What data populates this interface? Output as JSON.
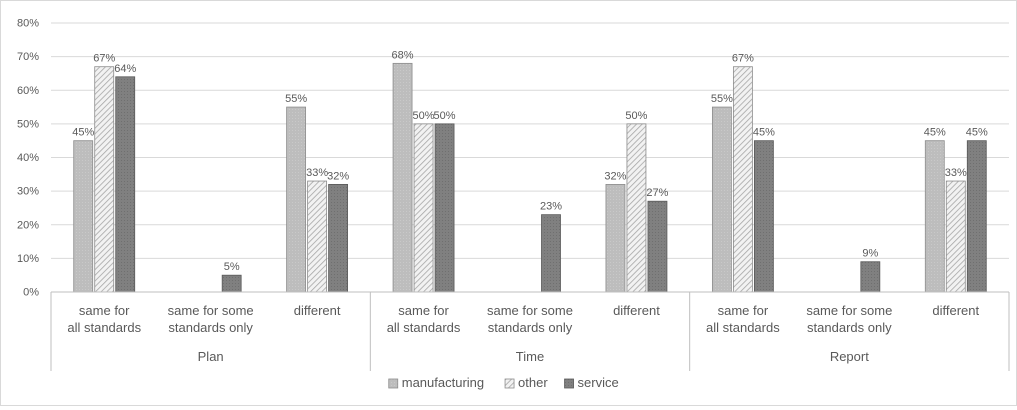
{
  "chart_data": {
    "type": "bar",
    "groups": [
      {
        "name": "Plan",
        "categories": [
          "same for all standards",
          "same for some standards only",
          "different"
        ]
      },
      {
        "name": "Time",
        "categories": [
          "same for all standards",
          "same for some standards only",
          "different"
        ]
      },
      {
        "name": "Report",
        "categories": [
          "same for all standards",
          "same for some standards only",
          "different"
        ]
      }
    ],
    "series": [
      {
        "name": "manufacturing",
        "color": "#bfbfbf",
        "pattern": "solid-light",
        "values": [
          45,
          0,
          55,
          68,
          0,
          32,
          55,
          0,
          45
        ],
        "labels": [
          "45%",
          "",
          "55%",
          "68%",
          "",
          "32%",
          "55%",
          "",
          "45%"
        ]
      },
      {
        "name": "other",
        "color": "#e6e6e6",
        "pattern": "diagonal-hatch",
        "values": [
          67,
          0,
          33,
          50,
          0,
          50,
          67,
          0,
          33
        ],
        "labels": [
          "67%",
          "",
          "33%",
          "50%",
          "",
          "50%",
          "67%",
          "",
          "33%"
        ]
      },
      {
        "name": "service",
        "color": "#7f7f7f",
        "pattern": "solid-dark",
        "values": [
          64,
          5,
          32,
          50,
          23,
          27,
          45,
          9,
          45
        ],
        "labels": [
          "64%",
          "5%",
          "32%",
          "50%",
          "23%",
          "27%",
          "45%",
          "9%",
          "45%"
        ]
      }
    ],
    "y_ticks": [
      "0%",
      "10%",
      "20%",
      "30%",
      "40%",
      "50%",
      "60%",
      "70%",
      "80%"
    ],
    "ylim": [
      0,
      80
    ],
    "grid": true,
    "legend_position": "bottom"
  }
}
